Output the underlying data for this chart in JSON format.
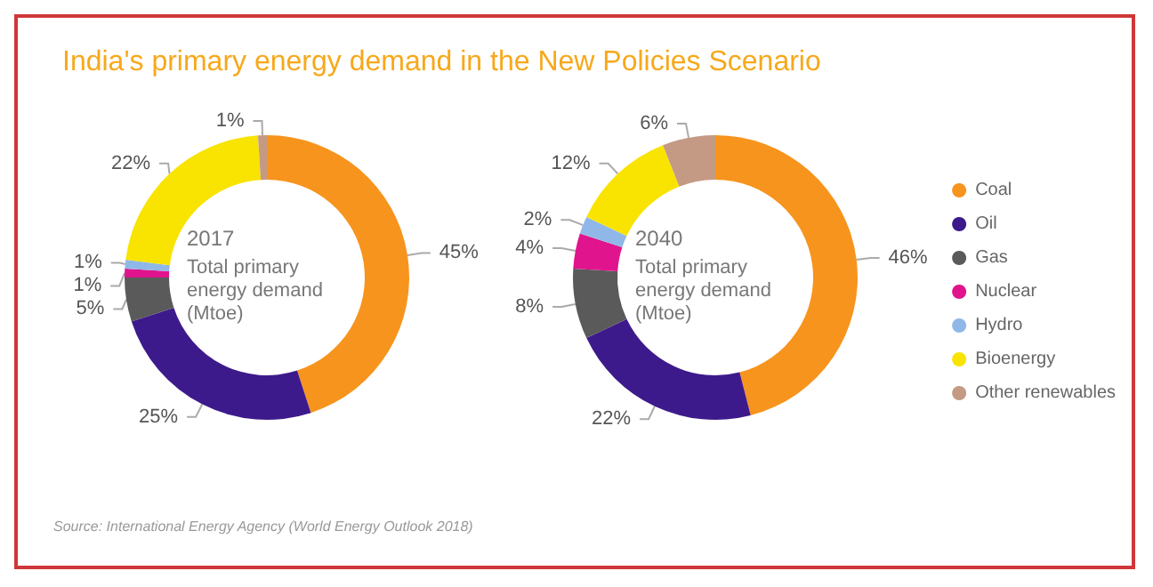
{
  "chart_data": {
    "type": "donut",
    "title": "India's primary energy demand in the New Policies Scenario",
    "categories": [
      "Coal",
      "Oil",
      "Gas",
      "Nuclear",
      "Hydro",
      "Bioenergy",
      "Other renewables"
    ],
    "colors": [
      "#f7941d",
      "#3d1a8c",
      "#5a5a5a",
      "#e0148c",
      "#8fb8e8",
      "#f9e300",
      "#c49a84"
    ],
    "series": [
      {
        "name": "2017",
        "values": [
          45,
          25,
          5,
          1,
          1,
          22,
          1
        ],
        "value_labels": [
          "45%",
          "25%",
          "5%",
          "1%",
          "1%",
          "22%",
          "1%"
        ]
      },
      {
        "name": "2040",
        "values": [
          46,
          22,
          8,
          4,
          2,
          12,
          6
        ],
        "value_labels": [
          "46%",
          "22%",
          "8%",
          "4%",
          "2%",
          "12%",
          "6%"
        ]
      }
    ],
    "annotations": [
      "Total primary energy demand (Mtoe)",
      "Total primary energy demand (Mtoe)",
      "Source: International Energy Agency (World Energy Outlook 2018)"
    ],
    "legend": "right"
  }
}
